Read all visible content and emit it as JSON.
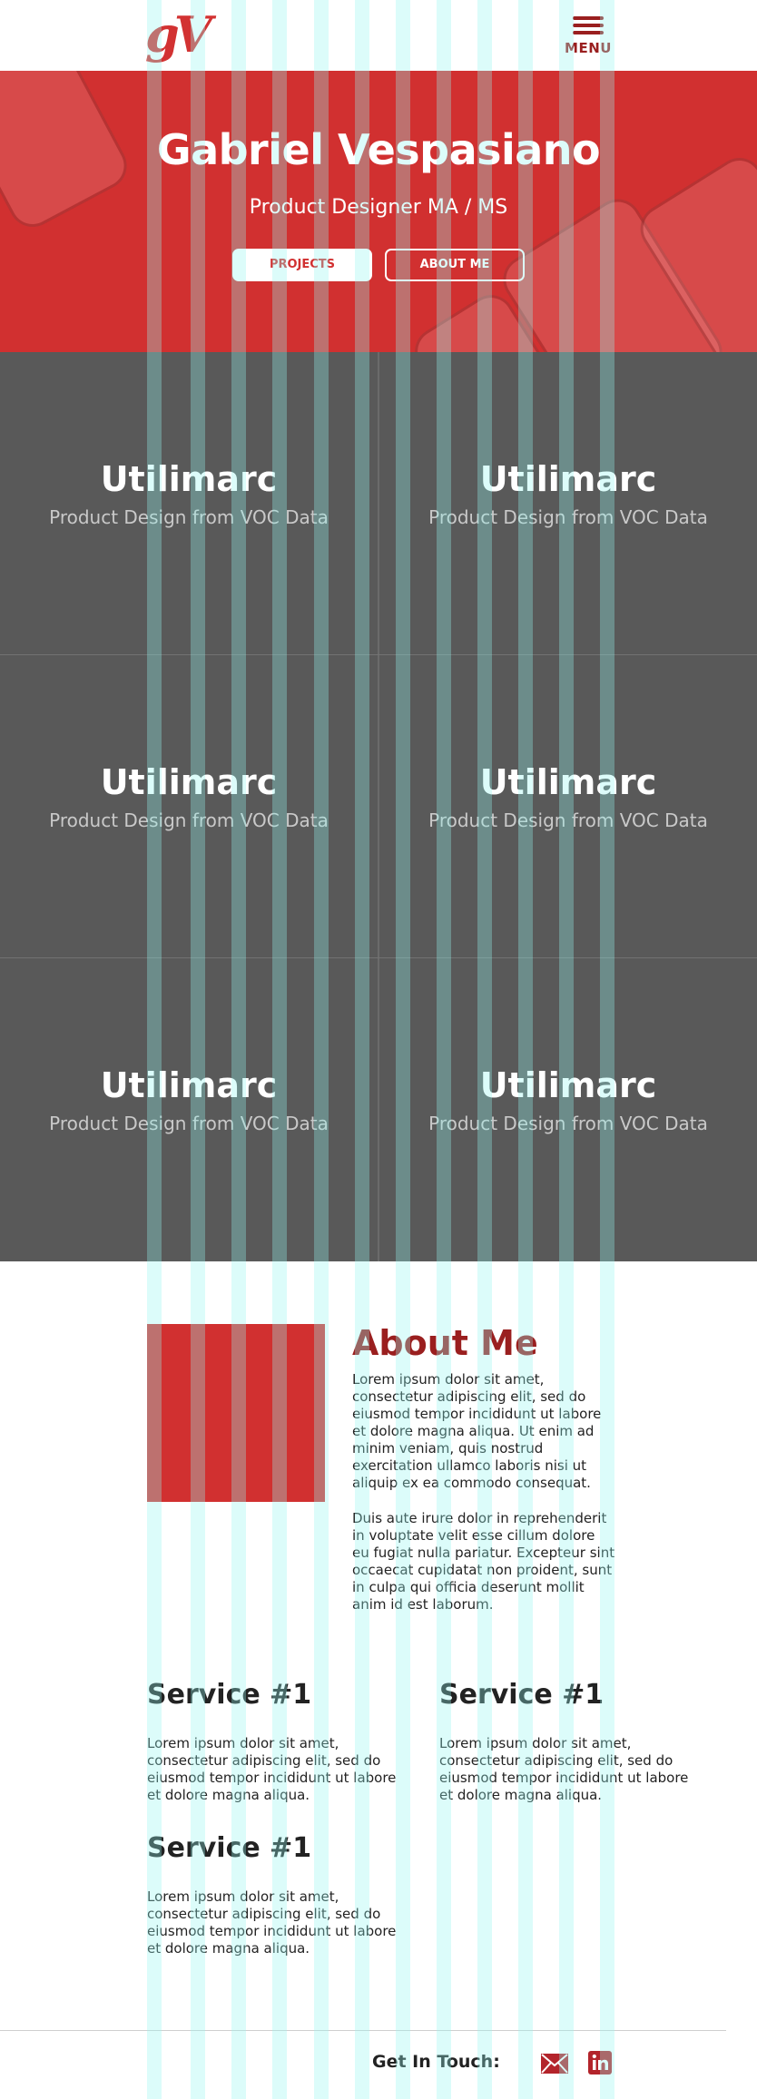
{
  "header": {
    "logo_text": "gV",
    "menu_label": "MENU"
  },
  "hero": {
    "title": "Gabriel Vespasiano",
    "subtitle": "Product Designer MA / MS",
    "projects_button": "PROJECTS",
    "about_button": "ABOUT ME",
    "background_color": "#d13030"
  },
  "projects": [
    {
      "title": "Utilimarc",
      "description": "Product Design from VOC Data"
    },
    {
      "title": "Utilimarc",
      "description": "Product Design from VOC Data"
    },
    {
      "title": "Utilimarc",
      "description": "Product Design from VOC Data"
    },
    {
      "title": "Utilimarc",
      "description": "Product Design from VOC Data"
    },
    {
      "title": "Utilimarc",
      "description": "Product Design from VOC Data"
    },
    {
      "title": "Utilimarc",
      "description": "Product Design from VOC Data"
    }
  ],
  "about": {
    "heading": "About Me",
    "paragraphs": [
      "Lorem ipsum dolor sit amet, consectetur adipiscing elit, sed do eiusmod tempor incididunt ut labore et dolore magna aliqua. Ut enim ad minim veniam, quis nostrud exercitation ullamco laboris nisi ut aliquip ex ea commodo consequat.",
      "Duis aute irure dolor in reprehenderit in voluptate velit esse cillum dolore eu fugiat nulla pariatur. Excepteur sint occaecat cupidatat non proident, sunt in culpa qui officia deserunt mollit anim id est laborum."
    ]
  },
  "services": [
    {
      "heading": "Service #1",
      "text": "Lorem ipsum dolor sit amet, consectetur adipiscing elit, sed do eiusmod tempor incididunt ut labore et dolore magna aliqua."
    },
    {
      "heading": "Service #1",
      "text": "Lorem ipsum dolor sit amet, consectetur adipiscing elit, sed do eiusmod tempor incididunt ut labore et dolore magna aliqua."
    },
    {
      "heading": "Service #1",
      "text": "Lorem ipsum dolor sit amet, consectetur adipiscing elit, sed do eiusmod tempor incididunt ut labore et dolore magna aliqua."
    }
  ],
  "footer": {
    "get_in_touch": "Get In Touch:",
    "icons": [
      "mail-icon",
      "linkedin-icon"
    ]
  },
  "colors": {
    "accent": "#d13030",
    "dark_accent": "#9a1f1f",
    "tile_bg": "#595959",
    "overlay": "#96f5f0"
  }
}
